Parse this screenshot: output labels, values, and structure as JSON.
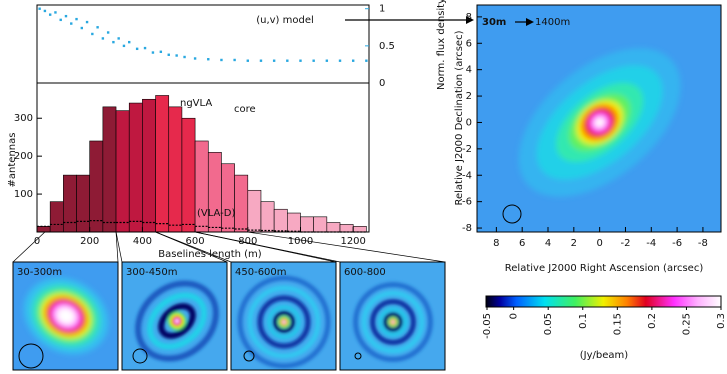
{
  "chart_data": [
    {
      "type": "scatter",
      "annotation": "(u,v) model",
      "ylabel": "Norm. flux density",
      "color": "#29a8e0",
      "xlim": [
        0,
        1260
      ],
      "ylim": [
        0,
        1.05
      ],
      "yticks": [
        0,
        0.5,
        1
      ],
      "x": [
        10,
        30,
        50,
        70,
        90,
        110,
        130,
        150,
        170,
        190,
        210,
        230,
        250,
        270,
        290,
        310,
        330,
        350,
        380,
        410,
        440,
        470,
        500,
        530,
        560,
        600,
        650,
        700,
        750,
        800,
        850,
        900,
        950,
        1000,
        1050,
        1100,
        1150,
        1200,
        1250
      ],
      "values": [
        1.0,
        0.97,
        0.92,
        0.95,
        0.85,
        0.9,
        0.8,
        0.86,
        0.74,
        0.82,
        0.66,
        0.75,
        0.6,
        0.68,
        0.55,
        0.6,
        0.5,
        0.55,
        0.46,
        0.47,
        0.41,
        0.42,
        0.38,
        0.37,
        0.35,
        0.33,
        0.32,
        0.31,
        0.31,
        0.3,
        0.3,
        0.3,
        0.3,
        0.3,
        0.3,
        0.3,
        0.3,
        0.3,
        0.3
      ]
    },
    {
      "type": "histogram",
      "title": "ngVLA",
      "title_subscript": "core",
      "xlabel": "Baselines length (m)",
      "ylabel": "#antennas",
      "xlim": [
        0,
        1260
      ],
      "ylim": [
        0,
        385
      ],
      "xticks": [
        0,
        200,
        400,
        600,
        800,
        1000,
        1200
      ],
      "yticks": [
        100,
        200,
        300
      ],
      "bins": [
        0,
        50,
        100,
        150,
        200,
        250,
        300,
        350,
        400,
        450,
        500,
        550,
        600,
        650,
        700,
        750,
        800,
        850,
        900,
        950,
        1000,
        1050,
        1100,
        1150,
        1200,
        1250
      ],
      "values": [
        15,
        80,
        150,
        150,
        240,
        330,
        320,
        340,
        350,
        360,
        330,
        300,
        240,
        210,
        180,
        150,
        110,
        80,
        60,
        50,
        40,
        40,
        25,
        20,
        15
      ],
      "colors": [
        "#8e1b35",
        "#8e1b35",
        "#8e1b35",
        "#8e1b35",
        "#8e1b35",
        "#8e1b35",
        "#bf1840",
        "#bf1840",
        "#bf1840",
        "#e6294c",
        "#e6294c",
        "#e6294c",
        "#f26a8e",
        "#f26a8e",
        "#f26a8e",
        "#f26a8e",
        "#f7a9c2",
        "#f7a9c2",
        "#f7a9c2",
        "#f7a9c2",
        "#f7a9c2",
        "#f7a9c2",
        "#f7a9c2",
        "#f7a9c2",
        "#f7a9c2"
      ],
      "series": [
        {
          "name": "(VLA-D)",
          "color": "#000000",
          "values": [
            15,
            20,
            25,
            28,
            30,
            25,
            25,
            28,
            25,
            22,
            18,
            20,
            15,
            12,
            10,
            8,
            5,
            4,
            3,
            2,
            0,
            0,
            0,
            0,
            0
          ]
        }
      ]
    },
    {
      "type": "image",
      "xlabel": "Relative J2000 Right Ascension (arcsec)",
      "ylabel": "Relative J2000 Declination (arcsec)",
      "xlim": [
        9.5,
        -9.4
      ],
      "ylim": [
        -8.3,
        8.9
      ],
      "xticks": [
        8,
        6,
        4,
        2,
        0,
        -2,
        -4,
        -6,
        -8
      ],
      "yticks": [
        -8,
        -6,
        -4,
        -2,
        0,
        2,
        4,
        6,
        8
      ],
      "annotations": [
        {
          "text": "30m",
          "color": "#7a0f22"
        },
        {
          "text": "1400m",
          "color": "#f1a0c8"
        }
      ]
    },
    {
      "type": "colorbar",
      "label": "(Jy/beam)",
      "clim": [
        -0.04,
        0.3
      ],
      "ticks": [
        -0.05,
        0,
        0.05,
        0.1,
        0.15,
        0.2,
        0.25,
        0.3
      ]
    },
    {
      "type": "images",
      "labels": [
        "30-300m",
        "300-450m",
        "450-600m",
        "600-800"
      ],
      "colors": [
        "#8e1b35",
        "#c0163a",
        "#e8294a",
        "#f0688a"
      ]
    }
  ]
}
